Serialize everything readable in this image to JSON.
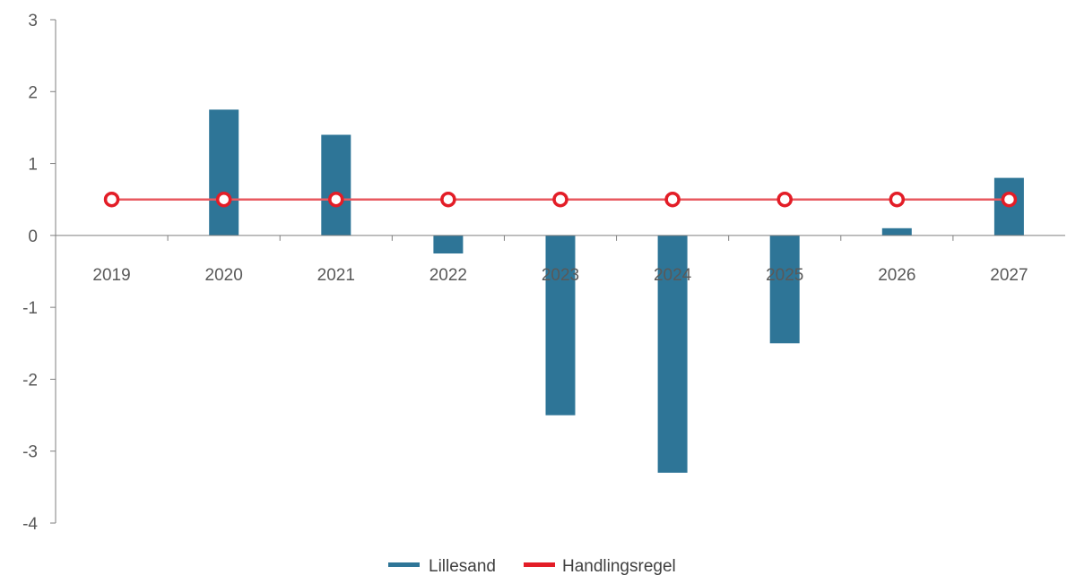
{
  "chart_data": {
    "type": "bar",
    "categories": [
      "2019",
      "2020",
      "2021",
      "2022",
      "2023",
      "2024",
      "2025",
      "2026",
      "2027"
    ],
    "ylim": [
      -4,
      3
    ],
    "y_ticks": [
      3,
      2,
      1,
      0,
      -1,
      -2,
      -3,
      -4
    ],
    "y_tick_labels": [
      "3",
      "2",
      "1",
      "0",
      "-1",
      "-2",
      "-3",
      "-4"
    ],
    "grid": false,
    "legend_position": "bottom",
    "series": [
      {
        "name": "Lillesand",
        "type": "bar",
        "color": "#2e7597",
        "values": [
          0,
          1.75,
          1.4,
          -0.25,
          -2.5,
          -3.3,
          -1.5,
          0.1,
          0.8
        ]
      },
      {
        "name": "Handlingsregel",
        "type": "line",
        "color": "#e31d27",
        "values": [
          0.5,
          0.5,
          0.5,
          0.5,
          0.5,
          0.5,
          0.5,
          0.5,
          0.5
        ]
      }
    ]
  }
}
